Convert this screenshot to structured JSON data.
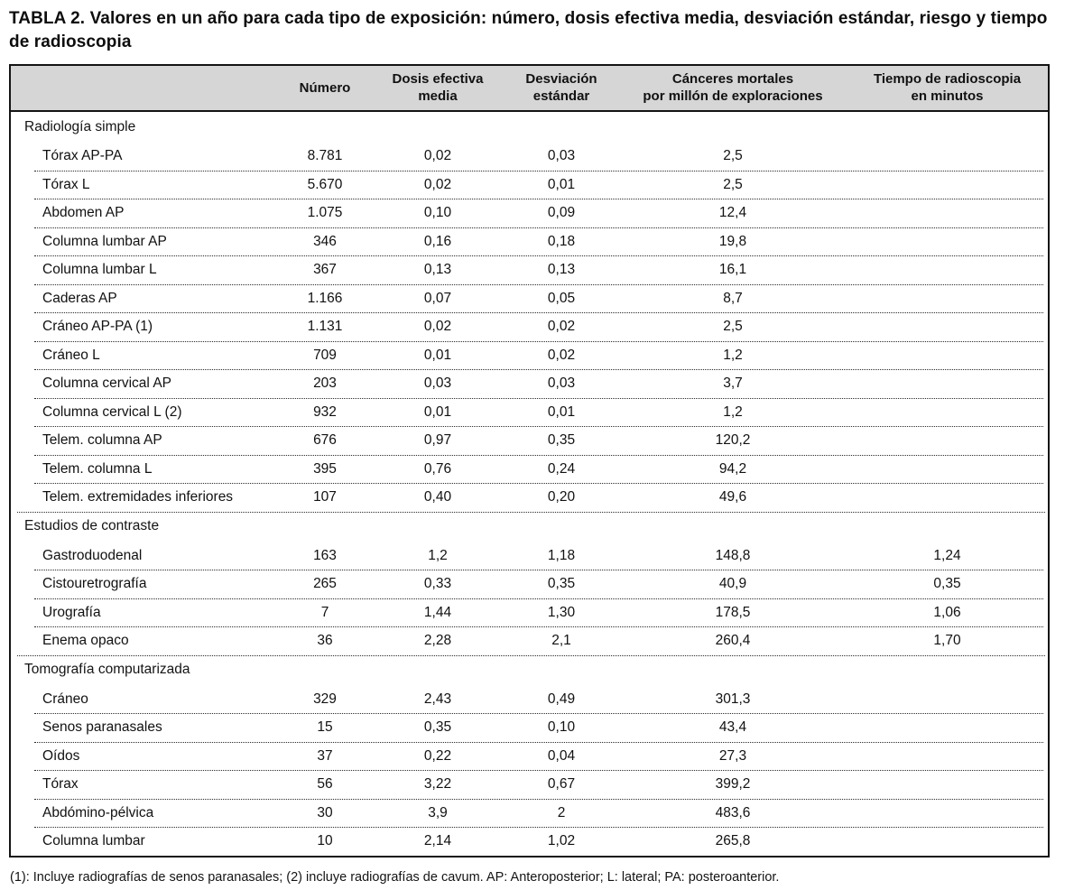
{
  "title": "TABLA 2. Valores en un año para cada tipo de exposición: número, dosis efectiva media, desviación estándar, riesgo y tiempo de radioscopia",
  "footnote": "(1): Incluye radiografías de senos paranasales; (2) incluye radiografías de cavum. AP: Anteroposterior; L: lateral; PA: posteroanterior.",
  "colors": {
    "header_bg": "#d6d6d6",
    "border": "#141414",
    "text": "#111111"
  },
  "chart_data": {
    "type": "table",
    "columns": [
      {
        "line1": "Número",
        "line2": ""
      },
      {
        "line1": "Dosis efectiva",
        "line2": "media"
      },
      {
        "line1": "Desviación",
        "line2": "estándar"
      },
      {
        "line1": "Cánceres mortales",
        "line2": "por millón de exploraciones"
      },
      {
        "line1": "Tiempo de radioscopia",
        "line2": "en minutos"
      }
    ],
    "sections": [
      {
        "name": "Radiología simple",
        "rows": [
          {
            "label": "Tórax AP-PA",
            "values": [
              "8.781",
              "0,02",
              "0,03",
              "2,5",
              ""
            ]
          },
          {
            "label": "Tórax L",
            "values": [
              "5.670",
              "0,02",
              "0,01",
              "2,5",
              ""
            ]
          },
          {
            "label": "Abdomen AP",
            "values": [
              "1.075",
              "0,10",
              "0,09",
              "12,4",
              ""
            ]
          },
          {
            "label": "Columna lumbar AP",
            "values": [
              "346",
              "0,16",
              "0,18",
              "19,8",
              ""
            ]
          },
          {
            "label": "Columna lumbar L",
            "values": [
              "367",
              "0,13",
              "0,13",
              "16,1",
              ""
            ]
          },
          {
            "label": "Caderas AP",
            "values": [
              "1.166",
              "0,07",
              "0,05",
              "8,7",
              ""
            ]
          },
          {
            "label": "Cráneo AP-PA (1)",
            "values": [
              "1.131",
              "0,02",
              "0,02",
              "2,5",
              ""
            ]
          },
          {
            "label": "Cráneo L",
            "values": [
              "709",
              "0,01",
              "0,02",
              "1,2",
              ""
            ]
          },
          {
            "label": "Columna cervical AP",
            "values": [
              "203",
              "0,03",
              "0,03",
              "3,7",
              ""
            ]
          },
          {
            "label": "Columna cervical L (2)",
            "values": [
              "932",
              "0,01",
              "0,01",
              "1,2",
              ""
            ]
          },
          {
            "label": "Telem. columna AP",
            "values": [
              "676",
              "0,97",
              "0,35",
              "120,2",
              ""
            ]
          },
          {
            "label": "Telem. columna L",
            "values": [
              "395",
              "0,76",
              "0,24",
              "94,2",
              ""
            ]
          },
          {
            "label": "Telem. extremidades inferiores",
            "values": [
              "107",
              "0,40",
              "0,20",
              "49,6",
              ""
            ]
          }
        ]
      },
      {
        "name": "Estudios de contraste",
        "rows": [
          {
            "label": "Gastroduodenal",
            "values": [
              "163",
              "1,2",
              "1,18",
              "148,8",
              "1,24"
            ]
          },
          {
            "label": "Cistouretrografía",
            "values": [
              "265",
              "0,33",
              "0,35",
              "40,9",
              "0,35"
            ]
          },
          {
            "label": "Urografía",
            "values": [
              "7",
              "1,44",
              "1,30",
              "178,5",
              "1,06"
            ]
          },
          {
            "label": "Enema opaco",
            "values": [
              "36",
              "2,28",
              "2,1",
              "260,4",
              "1,70"
            ]
          }
        ]
      },
      {
        "name": "Tomografía computarizada",
        "rows": [
          {
            "label": "Cráneo",
            "values": [
              "329",
              "2,43",
              "0,49",
              "301,3",
              ""
            ]
          },
          {
            "label": "Senos paranasales",
            "values": [
              "15",
              "0,35",
              "0,10",
              "43,4",
              ""
            ]
          },
          {
            "label": "Oídos",
            "values": [
              "37",
              "0,22",
              "0,04",
              "27,3",
              ""
            ]
          },
          {
            "label": "Tórax",
            "values": [
              "56",
              "3,22",
              "0,67",
              "399,2",
              ""
            ]
          },
          {
            "label": "Abdómino-pélvica",
            "values": [
              "30",
              "3,9",
              "2",
              "483,6",
              ""
            ]
          },
          {
            "label": "Columna lumbar",
            "values": [
              "10",
              "2,14",
              "1,02",
              "265,8",
              ""
            ]
          }
        ]
      }
    ]
  }
}
